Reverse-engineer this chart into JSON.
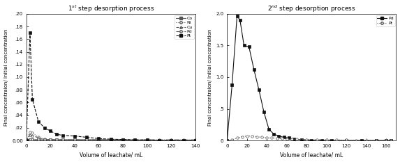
{
  "plot1": {
    "title": "1$^{st}$ step desorption process",
    "xlabel": "Volume of leachate/ mL",
    "ylabel": "Final concentraion/ Initial concentration",
    "xlim": [
      0,
      140
    ],
    "ylim": [
      0,
      0.2
    ],
    "yticks": [
      0.0,
      0.02,
      0.04,
      0.06,
      0.08,
      0.1,
      0.12,
      0.14,
      0.16,
      0.18,
      0.2
    ],
    "ytick_labels": [
      "0.00",
      ".02",
      ".04",
      ".06",
      ".08",
      ".10",
      ".12",
      ".14",
      ".16",
      ".18",
      ".20"
    ],
    "xticks": [
      0,
      20,
      40,
      60,
      80,
      100,
      120,
      140
    ],
    "Co": {
      "x": [
        0,
        3,
        5,
        10,
        15,
        20,
        25,
        30,
        40,
        50,
        60,
        70,
        80,
        90,
        100,
        110,
        120,
        130,
        140
      ],
      "y": [
        0.0,
        0.001,
        0.001,
        0.001,
        0.001,
        0.001,
        0.001,
        0.001,
        0.001,
        0.001,
        0.001,
        0.001,
        0.001,
        0.0005,
        0.0005,
        0.0005,
        0.0005,
        0.0005,
        0.0005
      ],
      "linestyle": "-",
      "marker": "s",
      "mfc": "#555555",
      "mec": "#555555",
      "color": "#555555"
    },
    "Ni": {
      "x": [
        0,
        3,
        5,
        10,
        15,
        20,
        25,
        30,
        40,
        50,
        60,
        70,
        80,
        90,
        100,
        110,
        120,
        130,
        140
      ],
      "y": [
        0.0,
        0.013,
        0.012,
        0.005,
        0.002,
        0.001,
        0.001,
        0.001,
        0.001,
        0.001,
        0.001,
        0.001,
        0.0005,
        0.0005,
        0.0005,
        0.0005,
        0.0005,
        0.0005,
        0.0005
      ],
      "linestyle": ":",
      "marker": "o",
      "mfc": "white",
      "mec": "#555555",
      "color": "#555555"
    },
    "Cu": {
      "x": [
        0,
        3,
        5,
        10,
        15,
        20,
        25,
        30,
        40,
        50,
        60,
        70,
        80,
        90,
        100,
        110,
        120,
        130,
        140
      ],
      "y": [
        0.0,
        0.009,
        0.008,
        0.004,
        0.002,
        0.001,
        0.001,
        0.0005,
        0.0005,
        0.0005,
        0.0005,
        0.0005,
        0.0005,
        0.0005,
        0.0005,
        0.0005,
        0.0005,
        0.0005,
        0.0005
      ],
      "linestyle": "--",
      "marker": "^",
      "mfc": "white",
      "mec": "#555555",
      "color": "#555555"
    },
    "Pd": {
      "x": [
        0,
        3,
        5,
        10,
        15,
        20,
        25,
        30,
        40,
        50,
        60,
        70,
        80,
        90,
        100,
        110,
        120,
        130,
        140
      ],
      "y": [
        0.0,
        0.001,
        0.001,
        0.001,
        0.001,
        0.001,
        0.001,
        0.001,
        0.001,
        0.001,
        0.001,
        0.001,
        0.001,
        0.001,
        0.001,
        0.001,
        0.001,
        0.001,
        0.001
      ],
      "linestyle": "-.",
      "marker": "o",
      "mfc": "white",
      "mec": "#555555",
      "color": "#555555"
    },
    "Pt": {
      "x": [
        0,
        3,
        5,
        10,
        15,
        20,
        25,
        30,
        40,
        50,
        60,
        70,
        80,
        90,
        100,
        110,
        120,
        130,
        140
      ],
      "y": [
        0.0,
        0.17,
        0.065,
        0.03,
        0.02,
        0.015,
        0.01,
        0.008,
        0.007,
        0.005,
        0.003,
        0.002,
        0.0015,
        0.001,
        0.0008,
        0.0005,
        0.0005,
        0.0003,
        0.0002
      ],
      "linestyle": "--",
      "marker": "s",
      "mfc": "#111111",
      "mec": "#111111",
      "color": "#111111"
    }
  },
  "plot2": {
    "title": "2$^{nd}$ step desorption process",
    "xlabel": "Volume of leachate/ mL",
    "ylabel": "Final concentraion/ Initial concentration",
    "xlim": [
      0,
      170
    ],
    "ylim": [
      0,
      2.0
    ],
    "yticks": [
      0.0,
      0.5,
      1.0,
      1.5,
      2.0
    ],
    "ytick_labels": [
      "0",
      ".5",
      "1.0",
      "1.5",
      "2.0"
    ],
    "xticks": [
      0,
      20,
      40,
      60,
      80,
      100,
      120,
      140,
      160
    ],
    "Pd": {
      "x": [
        0,
        5,
        10,
        13,
        17,
        22,
        27,
        32,
        37,
        42,
        47,
        52,
        57,
        62,
        67,
        75,
        85,
        95,
        105,
        120,
        135,
        150,
        160,
        165
      ],
      "y": [
        0.0,
        0.88,
        1.97,
        1.9,
        1.5,
        1.48,
        1.12,
        0.8,
        0.45,
        0.18,
        0.1,
        0.07,
        0.05,
        0.04,
        0.02,
        0.01,
        0.005,
        0.003,
        0.002,
        0.001,
        0.001,
        0.001,
        0.001,
        0.0005
      ],
      "linestyle": "-",
      "marker": "s",
      "mfc": "#111111",
      "mec": "#111111",
      "color": "#111111"
    },
    "Pt": {
      "x": [
        0,
        5,
        10,
        15,
        20,
        25,
        30,
        35,
        40,
        45,
        50,
        55,
        60,
        65,
        70,
        80,
        90,
        100,
        110,
        120,
        130,
        140,
        150,
        160,
        165
      ],
      "y": [
        0.0,
        0.01,
        0.04,
        0.06,
        0.07,
        0.07,
        0.06,
        0.05,
        0.04,
        0.04,
        0.035,
        0.03,
        0.025,
        0.02,
        0.018,
        0.015,
        0.012,
        0.01,
        0.008,
        0.006,
        0.004,
        0.003,
        0.002,
        0.001,
        0.0005
      ],
      "linestyle": ":",
      "marker": "o",
      "mfc": "white",
      "mec": "#555555",
      "color": "#555555"
    }
  }
}
